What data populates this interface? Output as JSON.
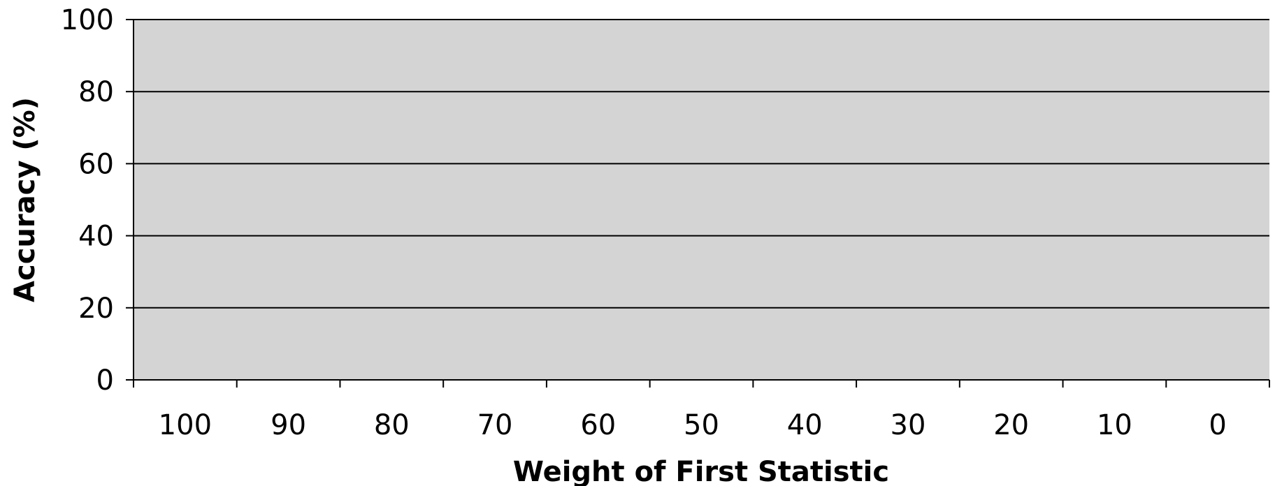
{
  "chart_data": {
    "type": "bar",
    "title": "",
    "xlabel": "Weight of First Statistic",
    "ylabel": "Accuracy (%)",
    "categories": [
      "100",
      "90",
      "80",
      "70",
      "60",
      "50",
      "40",
      "30",
      "20",
      "10",
      "0"
    ],
    "series": [],
    "ylim": [
      0,
      100
    ],
    "yticks": [
      0,
      20,
      40,
      60,
      80,
      100
    ],
    "grid": true,
    "legend": "none",
    "colors": {
      "plot_background": "#d4d4d4",
      "gridline": "#000000",
      "axis": "#000000"
    }
  }
}
